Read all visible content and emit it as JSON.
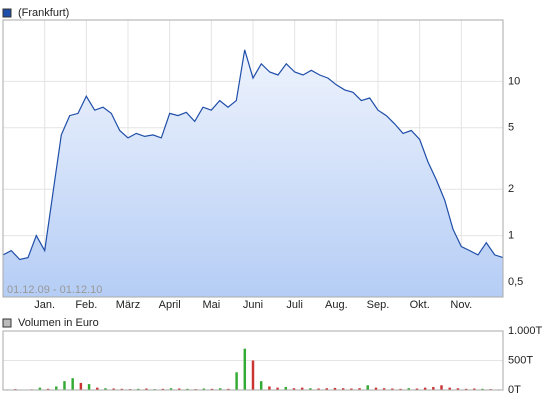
{
  "chart_data": [
    {
      "type": "area",
      "legend": "(Frankfurt)",
      "subtitle": "01.12.09 - 01.12.10",
      "color": "#1f4ea8",
      "yscale": "log",
      "ylim": [
        0.4,
        25
      ],
      "yticks": [
        {
          "value": 0.5,
          "label": "0,5"
        },
        1,
        2,
        5,
        10
      ],
      "grid": true,
      "categories": [
        null,
        null,
        null,
        null,
        null,
        "Jan.",
        null,
        null,
        null,
        null,
        "Feb.",
        null,
        null,
        null,
        null,
        "März",
        null,
        null,
        null,
        null,
        "April",
        null,
        null,
        null,
        null,
        "Mai",
        null,
        null,
        null,
        null,
        "Juni",
        null,
        null,
        null,
        null,
        "Juli",
        null,
        null,
        null,
        null,
        "Aug.",
        null,
        null,
        null,
        null,
        "Sep.",
        null,
        null,
        null,
        null,
        "Okt.",
        null,
        null,
        null,
        null,
        "Nov.",
        null,
        null,
        null,
        null,
        null
      ],
      "values": [
        0.75,
        0.8,
        0.7,
        0.72,
        1.0,
        0.8,
        1.9,
        4.5,
        6.0,
        6.2,
        8.0,
        6.5,
        6.8,
        6.2,
        4.8,
        4.3,
        4.6,
        4.4,
        4.5,
        4.3,
        6.2,
        6.0,
        6.3,
        5.5,
        6.8,
        6.5,
        7.5,
        6.8,
        7.5,
        16,
        10.5,
        13,
        11.5,
        11,
        13,
        11.5,
        11,
        11.8,
        11,
        10.5,
        9.5,
        8.8,
        8.5,
        7.5,
        7.8,
        6.5,
        6.0,
        5.3,
        4.6,
        4.8,
        4.2,
        3.0,
        2.3,
        1.7,
        1.1,
        0.85,
        0.8,
        0.75,
        0.9,
        0.75,
        0.72
      ]
    },
    {
      "type": "bar",
      "legend": "Volumen in Euro",
      "ylim": [
        0,
        1000
      ],
      "yticks": [
        {
          "value": 0,
          "label": "0T"
        },
        {
          "value": 500,
          "label": "500T"
        },
        {
          "value": 1000,
          "label": "1.000T"
        }
      ],
      "grid": true,
      "values": [
        10,
        15,
        8,
        12,
        40,
        20,
        60,
        150,
        200,
        120,
        100,
        40,
        30,
        25,
        20,
        15,
        20,
        25,
        15,
        20,
        30,
        25,
        20,
        15,
        25,
        20,
        30,
        20,
        300,
        700,
        500,
        150,
        60,
        40,
        50,
        30,
        40,
        30,
        25,
        30,
        35,
        30,
        25,
        30,
        80,
        40,
        30,
        25,
        20,
        30,
        25,
        40,
        50,
        80,
        40,
        30,
        20,
        25,
        20,
        15,
        10
      ],
      "bar_colors": [
        "#3a3",
        "#c33",
        "#3a3",
        "#c33",
        "#3a3",
        "#c33",
        "#3a3",
        "#3a3",
        "#3a3",
        "#c33",
        "#3a3",
        "#c33",
        "#3a3",
        "#c33",
        "#c33",
        "#c33",
        "#3a3",
        "#c33",
        "#3a3",
        "#c33",
        "#3a3",
        "#c33",
        "#3a3",
        "#c33",
        "#3a3",
        "#c33",
        "#3a3",
        "#c33",
        "#3a3",
        "#3a3",
        "#c33",
        "#3a3",
        "#c33",
        "#c33",
        "#3a3",
        "#c33",
        "#c33",
        "#3a3",
        "#c33",
        "#c33",
        "#c33",
        "#c33",
        "#c33",
        "#c33",
        "#3a3",
        "#c33",
        "#c33",
        "#c33",
        "#c33",
        "#3a3",
        "#c33",
        "#c33",
        "#c33",
        "#c33",
        "#c33",
        "#c33",
        "#c33",
        "#c33",
        "#3a3",
        "#c33",
        "#c33"
      ]
    }
  ]
}
